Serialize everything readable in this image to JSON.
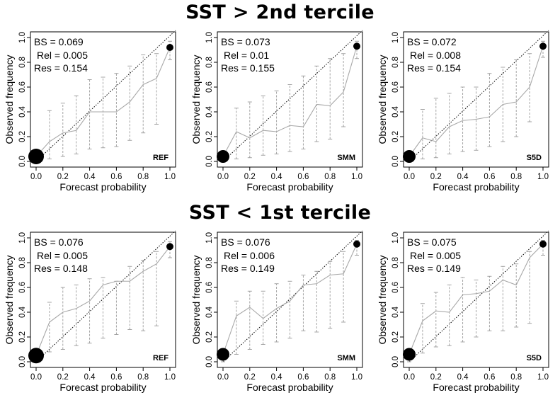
{
  "section_titles": [
    "SST > 2nd tercile",
    "SST < 1st tercile"
  ],
  "chart_data": [
    {
      "type": "scatter",
      "title": "",
      "xlabel": "Forecast probability",
      "ylabel": "Observed frequency",
      "xlim": [
        0,
        1
      ],
      "ylim": [
        0,
        1
      ],
      "xticks": [
        "0.0",
        "0.2",
        "0.4",
        "0.6",
        "0.8",
        "1.0"
      ],
      "yticks": [
        "0.0",
        "0.2",
        "0.4",
        "0.6",
        "0.8",
        "1.0"
      ],
      "model": "REF",
      "stats": [
        "BS = 0.069",
        "Rel = 0.005",
        "Res = 0.154"
      ],
      "x": [
        0,
        0.1,
        0.2,
        0.3,
        0.4,
        0.5,
        0.6,
        0.7,
        0.8,
        0.9,
        1.0
      ],
      "y": [
        0.04,
        0.16,
        0.23,
        0.25,
        0.4,
        0.4,
        0.4,
        0.48,
        0.62,
        0.67,
        0.92
      ],
      "ci_low": [
        0.0,
        0.02,
        0.04,
        0.06,
        0.1,
        0.11,
        0.12,
        0.17,
        0.23,
        0.3,
        0.82
      ],
      "ci_high": [
        0.08,
        0.41,
        0.47,
        0.53,
        0.66,
        0.68,
        0.71,
        0.77,
        0.86,
        0.87,
        0.97
      ],
      "dot_size": [
        3,
        0,
        0,
        0,
        0,
        0,
        0,
        0,
        0,
        0,
        1
      ]
    },
    {
      "type": "scatter",
      "title": "",
      "xlabel": "Forecast probability",
      "ylabel": "Observed frequency",
      "xlim": [
        0,
        1
      ],
      "ylim": [
        0,
        1
      ],
      "xticks": [
        "0.0",
        "0.2",
        "0.4",
        "0.6",
        "0.8",
        "1.0"
      ],
      "yticks": [
        "0.0",
        "0.2",
        "0.4",
        "0.6",
        "0.8",
        "1.0"
      ],
      "model": "SMM",
      "stats": [
        "BS = 0.073",
        "Rel = 0.01",
        "Res = 0.155"
      ],
      "x": [
        0,
        0.1,
        0.2,
        0.3,
        0.4,
        0.5,
        0.6,
        0.7,
        0.8,
        0.9,
        1.0
      ],
      "y": [
        0.04,
        0.24,
        0.19,
        0.25,
        0.24,
        0.29,
        0.28,
        0.46,
        0.45,
        0.56,
        0.93
      ],
      "ci_low": [
        0.0,
        0.02,
        0.03,
        0.05,
        0.06,
        0.08,
        0.1,
        0.16,
        0.18,
        0.28,
        0.83
      ],
      "ci_high": [
        0.08,
        0.43,
        0.48,
        0.53,
        0.57,
        0.62,
        0.69,
        0.77,
        0.83,
        0.87,
        0.97
      ],
      "dot_size": [
        2,
        0,
        0,
        0,
        0,
        0,
        0,
        0,
        0,
        0,
        1
      ]
    },
    {
      "type": "scatter",
      "title": "",
      "xlabel": "Forecast probability",
      "ylabel": "Observed frequency",
      "xlim": [
        0,
        1
      ],
      "ylim": [
        0,
        1
      ],
      "xticks": [
        "0.0",
        "0.2",
        "0.4",
        "0.6",
        "0.8",
        "1.0"
      ],
      "yticks": [
        "0.0",
        "0.2",
        "0.4",
        "0.6",
        "0.8",
        "1.0"
      ],
      "model": "S5D",
      "stats": [
        "BS = 0.072",
        "Rel = 0.008",
        "Res = 0.154"
      ],
      "x": [
        0,
        0.1,
        0.2,
        0.3,
        0.4,
        0.5,
        0.6,
        0.7,
        0.8,
        0.9,
        1.0
      ],
      "y": [
        0.04,
        0.19,
        0.16,
        0.28,
        0.33,
        0.34,
        0.36,
        0.46,
        0.48,
        0.6,
        0.93
      ],
      "ci_low": [
        0.0,
        0.02,
        0.03,
        0.06,
        0.08,
        0.09,
        0.12,
        0.16,
        0.2,
        0.32,
        0.84
      ],
      "ci_high": [
        0.08,
        0.42,
        0.51,
        0.55,
        0.6,
        0.6,
        0.71,
        0.76,
        0.82,
        0.87,
        0.97
      ],
      "dot_size": [
        2,
        0,
        0,
        0,
        0,
        0,
        0,
        0,
        0,
        0,
        1
      ]
    },
    {
      "type": "scatter",
      "title": "",
      "xlabel": "Forecast probability",
      "ylabel": "Observed frequency",
      "xlim": [
        0,
        1
      ],
      "ylim": [
        0,
        1
      ],
      "xticks": [
        "0.0",
        "0.2",
        "0.4",
        "0.6",
        "0.8",
        "1.0"
      ],
      "yticks": [
        "0.0",
        "0.2",
        "0.4",
        "0.6",
        "0.8",
        "1.0"
      ],
      "model": "REF",
      "stats": [
        "BS = 0.076",
        "Rel = 0.005",
        "Res = 0.148"
      ],
      "x": [
        0,
        0.1,
        0.2,
        0.3,
        0.4,
        0.5,
        0.6,
        0.7,
        0.8,
        0.9,
        1.0
      ],
      "y": [
        0.05,
        0.32,
        0.4,
        0.43,
        0.49,
        0.62,
        0.65,
        0.65,
        0.73,
        0.79,
        0.93
      ],
      "ci_low": [
        0.0,
        0.08,
        0.1,
        0.13,
        0.15,
        0.19,
        0.22,
        0.26,
        0.25,
        0.29,
        0.84
      ],
      "ci_high": [
        0.09,
        0.48,
        0.6,
        0.62,
        0.67,
        0.68,
        0.65,
        0.77,
        0.82,
        0.89,
        0.97
      ],
      "dot_size": [
        3,
        0,
        0,
        0,
        0,
        0,
        0,
        0,
        0,
        0,
        1
      ]
    },
    {
      "type": "scatter",
      "title": "",
      "xlabel": "Forecast probability",
      "ylabel": "Observed frequency",
      "xlim": [
        0,
        1
      ],
      "ylim": [
        0,
        1
      ],
      "xticks": [
        "0.0",
        "0.2",
        "0.4",
        "0.6",
        "0.8",
        "1.0"
      ],
      "yticks": [
        "0.0",
        "0.2",
        "0.4",
        "0.6",
        "0.8",
        "1.0"
      ],
      "model": "SMM",
      "stats": [
        "BS = 0.076",
        "Rel = 0.006",
        "Res = 0.149"
      ],
      "x": [
        0,
        0.1,
        0.2,
        0.3,
        0.4,
        0.5,
        0.6,
        0.7,
        0.8,
        0.9,
        1.0
      ],
      "y": [
        0.06,
        0.37,
        0.44,
        0.35,
        0.43,
        0.49,
        0.62,
        0.63,
        0.7,
        0.71,
        0.95
      ],
      "ci_low": [
        0.0,
        0.06,
        0.1,
        0.14,
        0.16,
        0.19,
        0.25,
        0.24,
        0.27,
        0.32,
        0.86
      ],
      "ci_high": [
        0.1,
        0.49,
        0.57,
        0.57,
        0.63,
        0.65,
        0.7,
        0.73,
        0.81,
        0.89,
        0.98
      ],
      "dot_size": [
        2,
        0,
        0,
        0,
        0,
        0,
        0,
        0,
        0,
        0,
        1
      ]
    },
    {
      "type": "scatter",
      "title": "",
      "xlabel": "Forecast probability",
      "ylabel": "Observed frequency",
      "xlim": [
        0,
        1
      ],
      "ylim": [
        0,
        1
      ],
      "xticks": [
        "0.0",
        "0.2",
        "0.4",
        "0.6",
        "0.8",
        "1.0"
      ],
      "yticks": [
        "0.0",
        "0.2",
        "0.4",
        "0.6",
        "0.8",
        "1.0"
      ],
      "model": "S5D",
      "stats": [
        "BS = 0.075",
        "Rel = 0.005",
        "Res = 0.149"
      ],
      "x": [
        0,
        0.1,
        0.2,
        0.3,
        0.4,
        0.5,
        0.6,
        0.7,
        0.8,
        0.9,
        1.0
      ],
      "y": [
        0.06,
        0.33,
        0.41,
        0.4,
        0.54,
        0.55,
        0.57,
        0.66,
        0.62,
        0.84,
        0.95
      ],
      "ci_low": [
        0.0,
        0.07,
        0.12,
        0.13,
        0.16,
        0.2,
        0.25,
        0.25,
        0.28,
        0.31,
        0.86
      ],
      "ci_high": [
        0.1,
        0.47,
        0.56,
        0.62,
        0.68,
        0.66,
        0.69,
        0.77,
        0.79,
        0.89,
        0.98
      ],
      "dot_size": [
        2,
        0,
        0,
        0,
        0,
        0,
        0,
        0,
        0,
        0,
        1
      ]
    }
  ]
}
